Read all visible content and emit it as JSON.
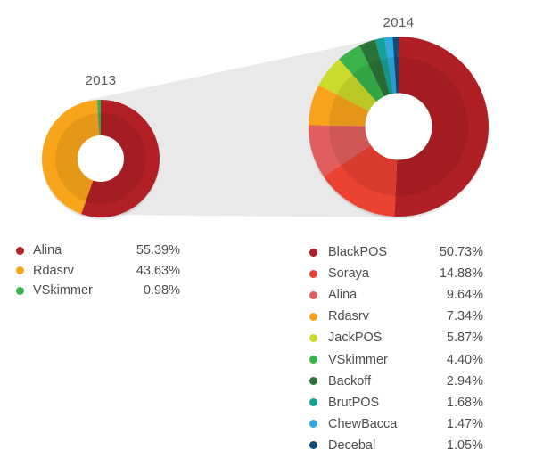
{
  "figure": {
    "background": "#FFFFFF",
    "beam_color": "#E9E9EA",
    "title_color": "#58595B",
    "legend_text_color": "#4D4D4F"
  },
  "chart_data": [
    {
      "type": "pie",
      "variant": "donut",
      "title": "2013",
      "start_angle_deg": 0,
      "direction": "clockwise",
      "legend_position": "below-left",
      "labels": [
        "Alina",
        "Rdasrv",
        "VSkimmer"
      ],
      "values": [
        55.39,
        43.63,
        0.98
      ],
      "display_values": [
        "55.39%",
        "43.63%",
        "0.98%"
      ],
      "colors": [
        "#B22025",
        "#F9A51B",
        "#39B54A"
      ]
    },
    {
      "type": "pie",
      "variant": "donut",
      "title": "2014",
      "start_angle_deg": 0,
      "direction": "clockwise",
      "legend_position": "below-right",
      "labels": [
        "BlackPOS",
        "Soraya",
        "Alina",
        "Rdasrv",
        "JackPOS",
        "VSkimmer",
        "Backoff",
        "BrutPOS",
        "ChewBacca",
        "Decebal"
      ],
      "values": [
        50.73,
        14.88,
        9.64,
        7.34,
        5.87,
        4.4,
        2.94,
        1.68,
        1.47,
        1.05
      ],
      "display_values": [
        "50.73%",
        "14.88%",
        "9.64%",
        "7.34%",
        "5.87%",
        "4.40%",
        "2.94%",
        "1.68%",
        "1.47%",
        "1.05%"
      ],
      "colors": [
        "#B01F24",
        "#EB4232",
        "#E05F5E",
        "#F9A21B",
        "#CBDB2C",
        "#39B34A",
        "#2B7238",
        "#16A198",
        "#2FA9E0",
        "#104D7D"
      ]
    }
  ]
}
